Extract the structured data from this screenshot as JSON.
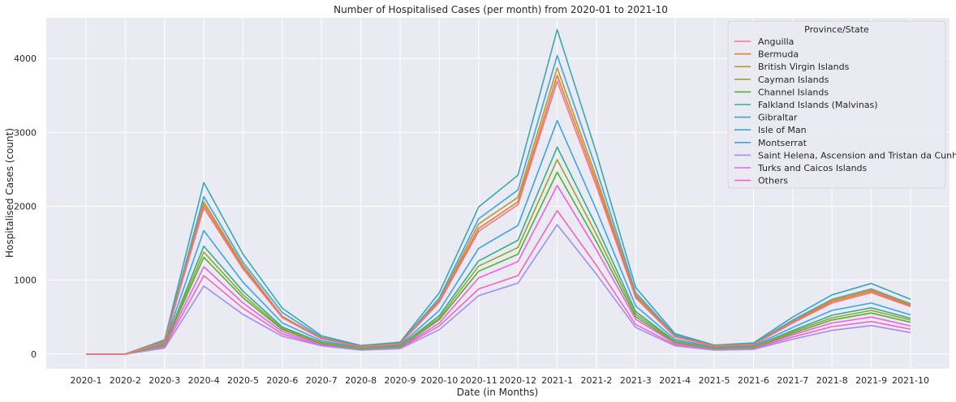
{
  "chart_data": {
    "type": "line",
    "title": "Number of Hospitalised Cases (per month) from 2020-01 to 2021-10",
    "xlabel": "Date (in Months)",
    "ylabel": "Hospitalised Cases (count)",
    "ylim": [
      -200,
      4550
    ],
    "yticks": [
      0,
      1000,
      2000,
      3000,
      4000
    ],
    "grid": true,
    "legend_title": "Province/State",
    "legend_position": "top-right",
    "categories": [
      "2020-1",
      "2020-2",
      "2020-3",
      "2020-4",
      "2020-5",
      "2020-6",
      "2020-7",
      "2020-8",
      "2020-9",
      "2020-10",
      "2020-11",
      "2020-12",
      "2021-1",
      "2021-2",
      "2021-3",
      "2021-4",
      "2021-5",
      "2021-6",
      "2021-7",
      "2021-8",
      "2021-9",
      "2021-10"
    ],
    "series": [
      {
        "name": "Anguilla",
        "color": "#f77189",
        "values": [
          0,
          0,
          160,
          1980,
          1150,
          490,
          205,
          95,
          135,
          700,
          1660,
          2020,
          3690,
          2270,
          760,
          230,
          105,
          125,
          420,
          690,
          830,
          640
        ]
      },
      {
        "name": "Bermuda",
        "color": "#e1812c",
        "values": [
          0,
          0,
          165,
          2020,
          1170,
          500,
          210,
          98,
          138,
          715,
          1700,
          2060,
          3770,
          2330,
          780,
          235,
          107,
          128,
          430,
          710,
          850,
          655
        ]
      },
      {
        "name": "British Virgin Islands",
        "color": "#bb9832",
        "values": [
          0,
          0,
          170,
          2060,
          1200,
          510,
          215,
          100,
          142,
          730,
          1760,
          2120,
          3870,
          2390,
          800,
          240,
          110,
          132,
          440,
          730,
          870,
          670
        ]
      },
      {
        "name": "Cayman Islands",
        "color": "#97a431",
        "values": [
          0,
          0,
          125,
          1380,
          800,
          345,
          150,
          70,
          100,
          490,
          1190,
          1440,
          2630,
          1620,
          540,
          165,
          78,
          92,
          300,
          490,
          590,
          460
        ]
      },
      {
        "name": "Channel Islands",
        "color": "#50b131",
        "values": [
          0,
          0,
          118,
          1310,
          760,
          330,
          142,
          67,
          95,
          465,
          1120,
          1350,
          2460,
          1520,
          505,
          155,
          74,
          87,
          280,
          460,
          555,
          430
        ]
      },
      {
        "name": "Falkland Islands (Malvinas)",
        "color": "#35ac90",
        "values": [
          0,
          0,
          128,
          1460,
          850,
          365,
          158,
          74,
          106,
          520,
          1260,
          1540,
          2800,
          1730,
          575,
          175,
          82,
          97,
          318,
          525,
          625,
          485
        ]
      },
      {
        "name": "Gibraltar",
        "color": "#38a7b3",
        "values": [
          0,
          0,
          190,
          2320,
          1350,
          620,
          245,
          115,
          160,
          830,
          1990,
          2420,
          4390,
          2720,
          900,
          275,
          120,
          150,
          500,
          800,
          955,
          740
        ]
      },
      {
        "name": "Isle of Man",
        "color": "#3ba3ec",
        "values": [
          0,
          0,
          148,
          1670,
          970,
          420,
          178,
          84,
          120,
          590,
          1430,
          1740,
          3160,
          1950,
          650,
          198,
          92,
          110,
          360,
          590,
          690,
          530
        ]
      },
      {
        "name": "Montserrat",
        "color": "#3ba3ec",
        "values": [
          0,
          0,
          175,
          2130,
          1240,
          560,
          225,
          106,
          150,
          760,
          1830,
          2220,
          4040,
          2500,
          830,
          255,
          114,
          140,
          460,
          740,
          880,
          680
        ]
      },
      {
        "name": "Saint Helena, Ascension and Tristan da Cunha",
        "color": "#a48cf4",
        "values": [
          0,
          0,
          80,
          920,
          535,
          240,
          110,
          52,
          72,
          330,
          790,
          960,
          1750,
          1080,
          360,
          110,
          52,
          62,
          200,
          320,
          385,
          290
        ]
      },
      {
        "name": "Turks and Caicos Islands",
        "color": "#f45deb",
        "values": [
          0,
          0,
          110,
          1180,
          690,
          300,
          130,
          60,
          86,
          420,
          1030,
          1250,
          2280,
          1410,
          470,
          143,
          68,
          80,
          260,
          420,
          500,
          380
        ]
      },
      {
        "name": "Others",
        "color": "#f565bd",
        "values": [
          0,
          0,
          95,
          1060,
          620,
          270,
          120,
          56,
          80,
          380,
          880,
          1060,
          1940,
          1200,
          400,
          125,
          60,
          72,
          230,
          370,
          440,
          335
        ]
      }
    ]
  }
}
